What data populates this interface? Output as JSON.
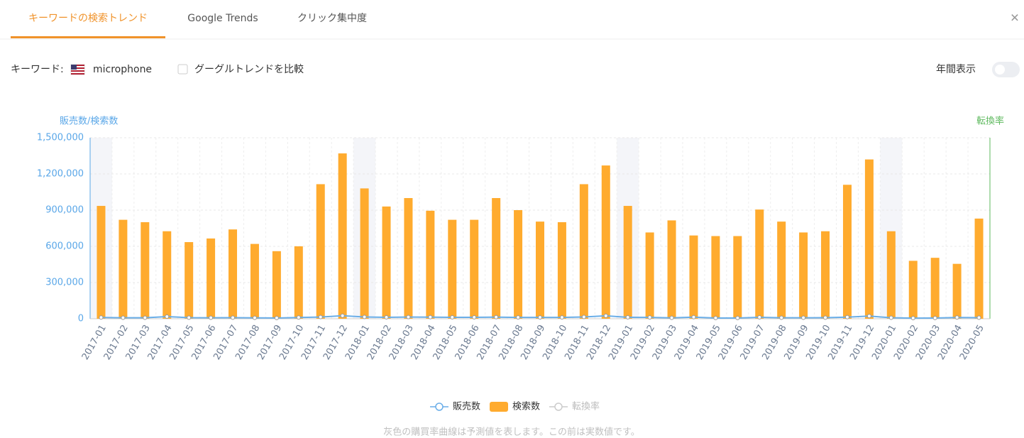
{
  "tabs": [
    "キーワードの検索トレンド",
    "Google Trends",
    "クリック集中度"
  ],
  "close": "✕",
  "keyword_label": "キーワード:",
  "keyword": "microphone",
  "compare_checkbox": "グーグルトレンドを比較",
  "yearly_toggle": "年間表示",
  "footnote": "灰色の購買率曲線は予測値を表します。この前は実数値です。",
  "chart_data": {
    "type": "bar",
    "ylabel": "販売数/検索数",
    "y2label": "転換率",
    "categories": [
      "2017-01",
      "2017-02",
      "2017-03",
      "2017-04",
      "2017-05",
      "2017-06",
      "2017-07",
      "2017-08",
      "2017-09",
      "2017-10",
      "2017-11",
      "2017-12",
      "2018-01",
      "2018-02",
      "2018-03",
      "2018-04",
      "2018-05",
      "2018-06",
      "2018-07",
      "2018-08",
      "2018-09",
      "2018-10",
      "2018-11",
      "2018-12",
      "2019-01",
      "2019-02",
      "2019-03",
      "2019-04",
      "2019-05",
      "2019-06",
      "2019-07",
      "2019-08",
      "2019-09",
      "2019-10",
      "2019-11",
      "2019-12",
      "2020-01",
      "2020-02",
      "2020-03",
      "2020-04",
      "2020-05"
    ],
    "series": [
      {
        "name": "販売数",
        "type": "line",
        "color": "#6aaee8",
        "values": [
          10000,
          8000,
          8000,
          18000,
          9000,
          8000,
          9000,
          7000,
          6000,
          10000,
          14000,
          25000,
          15000,
          12000,
          14000,
          13000,
          12000,
          12000,
          13000,
          11000,
          11000,
          11000,
          15000,
          24000,
          12000,
          11000,
          7000,
          13000,
          6000,
          6000,
          12000,
          8000,
          8000,
          9000,
          13000,
          22000,
          8000,
          5000,
          6000,
          10000,
          9000
        ]
      },
      {
        "name": "検索数",
        "type": "bar",
        "color": "#ffab2e",
        "values": [
          935000,
          820000,
          800000,
          725000,
          635000,
          665000,
          740000,
          620000,
          560000,
          600000,
          1115000,
          1370000,
          1080000,
          930000,
          1000000,
          895000,
          820000,
          820000,
          1000000,
          900000,
          805000,
          800000,
          1115000,
          1270000,
          935000,
          715000,
          815000,
          690000,
          685000,
          685000,
          905000,
          805000,
          715000,
          725000,
          1110000,
          1320000,
          725000,
          480000,
          505000,
          455000,
          830000
        ]
      },
      {
        "name": "転換率",
        "type": "line",
        "color": "#cccccc",
        "axis": "y2"
      }
    ],
    "ylim": [
      0,
      1500000
    ],
    "yticks": [
      0,
      {
        "value": 300000,
        "label": "300,000"
      },
      {
        "value": 600000,
        "label": "600,000"
      },
      {
        "value": 900000,
        "label": "900,000"
      },
      {
        "value": 1200000,
        "label": "1,200,000"
      },
      {
        "value": 1500000,
        "label": "1,500,000"
      }
    ],
    "grid": true
  }
}
